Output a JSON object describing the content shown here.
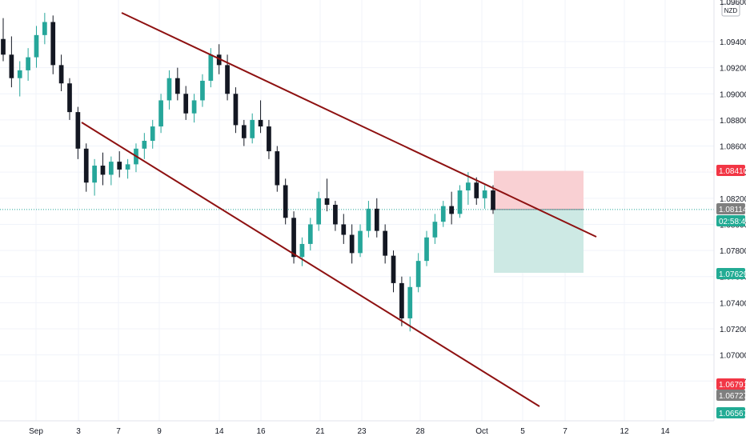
{
  "currency_label": "NZD",
  "top_tick_partial": "1.09600",
  "price_ticks": [
    "1.09400",
    "1.09200",
    "1.09000",
    "1.08800",
    "1.08600",
    "1.08400",
    "1.08200",
    "1.08000",
    "1.07800",
    "1.07600",
    "1.07400",
    "1.07200",
    "1.07000",
    "1.06800"
  ],
  "date_ticks": [
    "Sep",
    "3",
    "7",
    "9",
    "14",
    "16",
    "21",
    "23",
    "28",
    "Oct",
    "5",
    "7",
    "12",
    "14"
  ],
  "price_badges": [
    {
      "name": "stop-loss-badge",
      "text": "1.08410",
      "color": "#f23645"
    },
    {
      "name": "current-price-badge",
      "text": "1.08114",
      "color": "#7f7f7f"
    },
    {
      "name": "countdown-badge",
      "text": "02:58:46",
      "color": "#22ab94"
    },
    {
      "name": "take-profit-badge",
      "text": "1.07629",
      "color": "#22ab94"
    },
    {
      "name": "low-red-badge",
      "text": "1.06791",
      "color": "#f23645"
    },
    {
      "name": "low-gray-badge",
      "text": "1.06727",
      "color": "#7f7f7f"
    },
    {
      "name": "low-green-badge",
      "text": "1.06567",
      "color": "#22ab94"
    }
  ],
  "colors": {
    "bull": "#26a69a",
    "bear": "#131722",
    "trendline": "#8e1111",
    "stop_zone": "#f9d0d3",
    "target_zone": "#cde9e4",
    "grid": "#f0f3fa"
  },
  "chart_data": {
    "type": "candlestick",
    "symbol_quote": "NZD",
    "y_range": [
      1.065,
      1.0965
    ],
    "last_price": 1.08114,
    "stop_loss": 1.0841,
    "take_profit": 1.07629,
    "trendlines": [
      {
        "name": "upper-channel",
        "from": {
          "date": "Sep 5",
          "price": 1.0953
        },
        "to": {
          "date": "Oct 8",
          "price": 1.0797
        }
      },
      {
        "name": "lower-channel",
        "from": {
          "date": "Sep 3",
          "price": 1.088
        },
        "to": {
          "date": "Oct 7",
          "price": 1.0663
        }
      }
    ],
    "candles": [
      [
        1.0942,
        1.0958,
        1.0925,
        1.093
      ],
      [
        1.093,
        1.0944,
        1.0905,
        1.0912
      ],
      [
        1.0912,
        1.0925,
        1.0898,
        1.0918
      ],
      [
        1.0918,
        1.0935,
        1.091,
        1.0928
      ],
      [
        1.0928,
        1.0952,
        1.092,
        1.0945
      ],
      [
        1.0945,
        1.0962,
        1.0938,
        1.0955
      ],
      [
        1.0955,
        1.096,
        1.0915,
        1.0922
      ],
      [
        1.0922,
        1.093,
        1.0902,
        1.0908
      ],
      [
        1.0908,
        1.0912,
        1.088,
        1.0886
      ],
      [
        1.0886,
        1.089,
        1.085,
        1.0858
      ],
      [
        1.0858,
        1.0862,
        1.0825,
        1.0832
      ],
      [
        1.0832,
        1.085,
        1.0822,
        1.0845
      ],
      [
        1.0845,
        1.0855,
        1.083,
        1.0838
      ],
      [
        1.0838,
        1.0852,
        1.083,
        1.0848
      ],
      [
        1.0848,
        1.0856,
        1.0836,
        1.0842
      ],
      [
        1.0842,
        1.085,
        1.0835,
        1.0846
      ],
      [
        1.0846,
        1.0862,
        1.084,
        1.0858
      ],
      [
        1.0858,
        1.087,
        1.085,
        1.0864
      ],
      [
        1.0864,
        1.088,
        1.0858,
        1.0875
      ],
      [
        1.0875,
        1.09,
        1.087,
        1.0895
      ],
      [
        1.0895,
        1.0918,
        1.0888,
        1.0912
      ],
      [
        1.0912,
        1.092,
        1.0895,
        1.09
      ],
      [
        1.09,
        1.0906,
        1.088,
        1.0885
      ],
      [
        1.0885,
        1.09,
        1.0878,
        1.0895
      ],
      [
        1.0895,
        1.0915,
        1.089,
        1.091
      ],
      [
        1.091,
        1.0935,
        1.0905,
        1.093
      ],
      [
        1.093,
        1.0938,
        1.0915,
        1.0922
      ],
      [
        1.0922,
        1.093,
        1.0895,
        1.09
      ],
      [
        1.09,
        1.0905,
        1.087,
        1.0876
      ],
      [
        1.0876,
        1.088,
        1.086,
        1.0866
      ],
      [
        1.0866,
        1.0885,
        1.0862,
        1.088
      ],
      [
        1.088,
        1.0895,
        1.087,
        1.0875
      ],
      [
        1.0875,
        1.088,
        1.085,
        1.0856
      ],
      [
        1.0856,
        1.086,
        1.0825,
        1.083
      ],
      [
        1.083,
        1.0835,
        1.08,
        1.0805
      ],
      [
        1.0805,
        1.081,
        1.077,
        1.0775
      ],
      [
        1.0775,
        1.079,
        1.0768,
        1.0785
      ],
      [
        1.0785,
        1.0805,
        1.078,
        1.08
      ],
      [
        1.08,
        1.0825,
        1.0795,
        1.082
      ],
      [
        1.082,
        1.0835,
        1.081,
        1.0815
      ],
      [
        1.0815,
        1.0818,
        1.0795,
        1.08
      ],
      [
        1.08,
        1.0808,
        1.0785,
        1.0792
      ],
      [
        1.0792,
        1.08,
        1.077,
        1.0778
      ],
      [
        1.0778,
        1.08,
        1.0775,
        1.0795
      ],
      [
        1.0795,
        1.0818,
        1.079,
        1.0812
      ],
      [
        1.0812,
        1.082,
        1.079,
        1.0795
      ],
      [
        1.0795,
        1.08,
        1.077,
        1.0776
      ],
      [
        1.0776,
        1.078,
        1.0748,
        1.0755
      ],
      [
        1.0755,
        1.076,
        1.0722,
        1.0728
      ],
      [
        1.0728,
        1.076,
        1.0718,
        1.0752
      ],
      [
        1.0752,
        1.0778,
        1.0748,
        1.0772
      ],
      [
        1.0772,
        1.0795,
        1.0768,
        1.079
      ],
      [
        1.079,
        1.0808,
        1.0785,
        1.0802
      ],
      [
        1.0802,
        1.0818,
        1.0798,
        1.0814
      ],
      [
        1.0814,
        1.0825,
        1.08,
        1.0808
      ],
      [
        1.0808,
        1.083,
        1.0805,
        1.0826
      ],
      [
        1.0826,
        1.084,
        1.0815,
        1.0832
      ],
      [
        1.0832,
        1.0836,
        1.0815,
        1.082
      ],
      [
        1.082,
        1.083,
        1.0812,
        1.0826
      ],
      [
        1.0826,
        1.083,
        1.0808,
        1.0811
      ]
    ]
  }
}
